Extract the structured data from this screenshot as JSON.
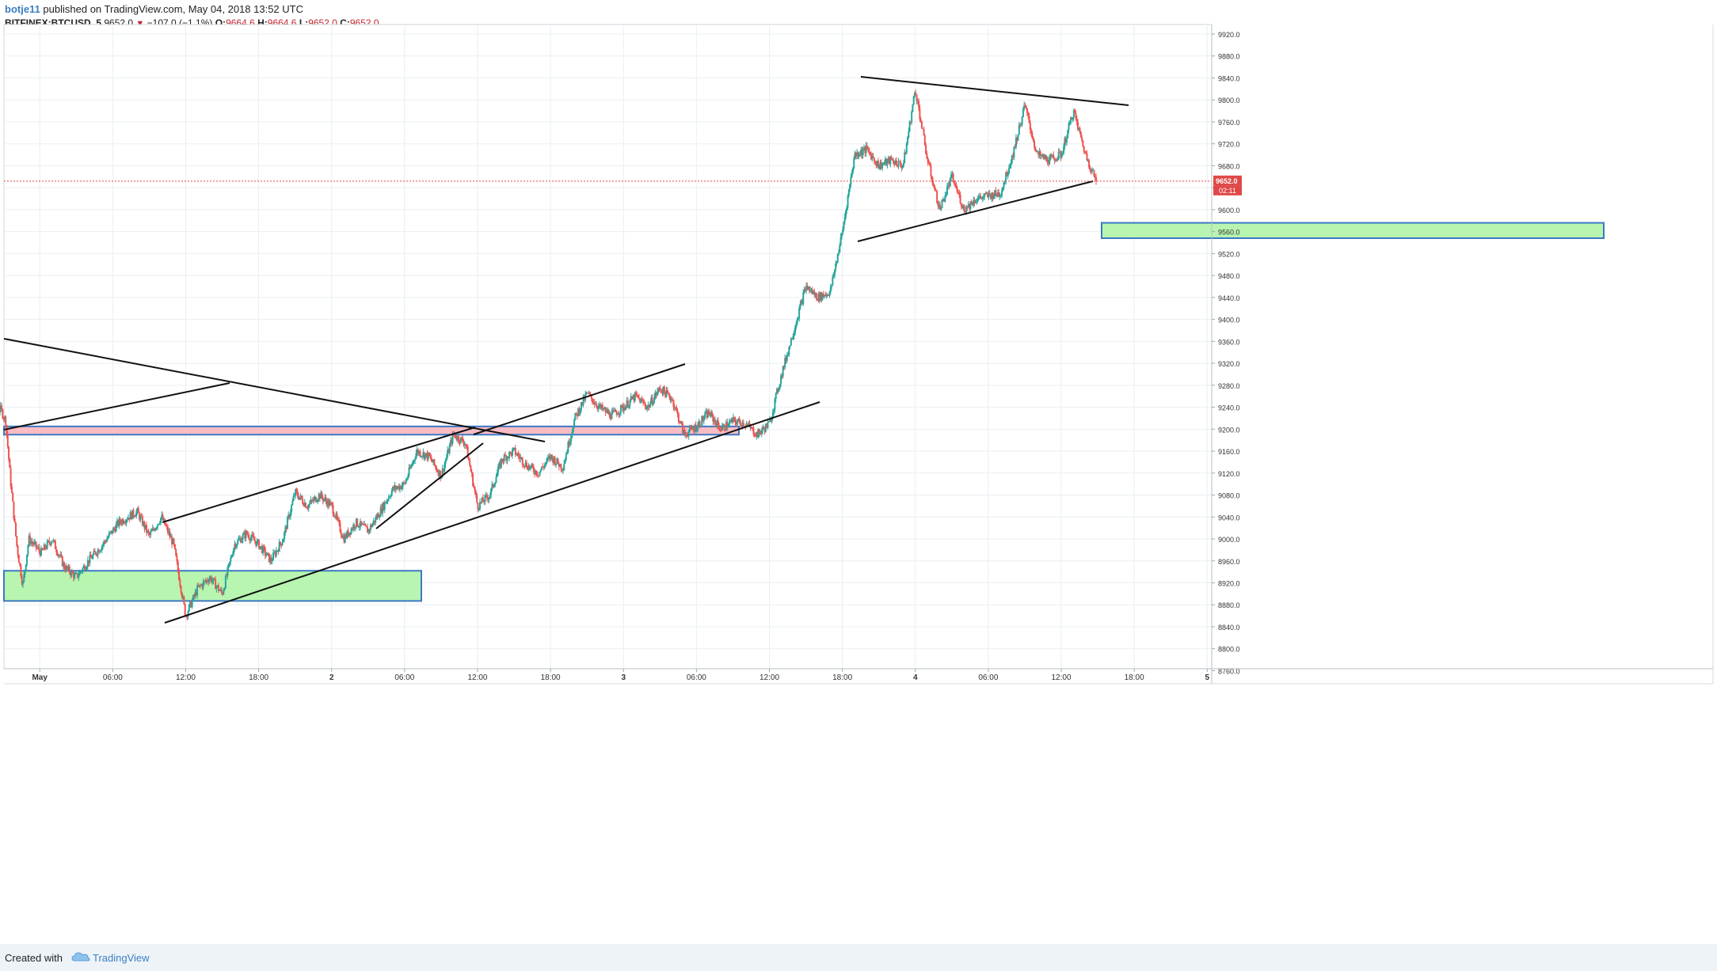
{
  "header": {
    "author": "botje11",
    "published_text": "published on TradingView.com, May 04, 2018 13:52 UTC",
    "symbol": "BITFINEX:BTCUSD, 5",
    "last_price": "9652.0",
    "change": "−107.0 (−1.1%)",
    "o_label": "O:",
    "o_value": "9664.6",
    "h_label": "H:",
    "h_value": "9664.6",
    "l_label": "L:",
    "l_value": "9652.0",
    "c_label": "C:",
    "c_value": "9652.0"
  },
  "footer": {
    "created_with": "Created with",
    "brand": "TradingView"
  },
  "colors": {
    "up": "#26a69a",
    "down": "#ef5350",
    "grid": "#e9eff3",
    "support_zone_fill": "#b8f5b0",
    "resistance_zone_fill": "#f9bcc4",
    "zone_border": "#3d78c4",
    "price_line": "#e04848"
  },
  "chart_data": {
    "type": "candlestick",
    "x_tick_labels": [
      "May",
      "06:00",
      "12:00",
      "18:00",
      "2",
      "06:00",
      "12:00",
      "18:00",
      "3",
      "06:00",
      "12:00",
      "18:00",
      "4",
      "06:00",
      "12:00",
      "18:00",
      "5"
    ],
    "y_axis": {
      "ylim": [
        8760,
        9920
      ],
      "tick_step": 40,
      "tick_labels": [
        "9920.0",
        "9880.0",
        "9840.0",
        "9800.0",
        "9760.0",
        "9720.0",
        "9680.0",
        "9640.0",
        "9600.0",
        "9560.0",
        "9520.0",
        "9480.0",
        "9440.0",
        "9400.0",
        "9360.0",
        "9320.0",
        "9280.0",
        "9240.0",
        "9200.0",
        "9160.0",
        "9120.0",
        "9080.0",
        "9040.0",
        "9000.0",
        "8960.0",
        "8920.0",
        "8880.0",
        "8840.0",
        "8800.0",
        "8760.0"
      ]
    },
    "last_price_label": "9652.0",
    "countdown_label": "02:11",
    "price_path_hours": [
      [
        -5.3,
        9250
      ],
      [
        -4.9,
        9240
      ],
      [
        -4.4,
        9270
      ],
      [
        -4.1,
        9230
      ],
      [
        -3.8,
        9175
      ],
      [
        -3.3,
        9240
      ],
      [
        -2.8,
        9215
      ],
      [
        -2.4,
        9105
      ],
      [
        -1.9,
        8990
      ],
      [
        -1.4,
        8915
      ],
      [
        -0.9,
        9000
      ],
      [
        0.1,
        8975
      ],
      [
        1.0,
        9000
      ],
      [
        2.0,
        8950
      ],
      [
        3.0,
        8930
      ],
      [
        4.0,
        8960
      ],
      [
        5.0,
        8985
      ],
      [
        6.5,
        9030
      ],
      [
        8.0,
        9050
      ],
      [
        9.0,
        9005
      ],
      [
        10.0,
        9040
      ],
      [
        11.0,
        8990
      ],
      [
        12.0,
        8860
      ],
      [
        13.0,
        8910
      ],
      [
        14.0,
        8930
      ],
      [
        15.0,
        8900
      ],
      [
        16.0,
        8990
      ],
      [
        17.0,
        9010
      ],
      [
        18.0,
        8990
      ],
      [
        19.0,
        8960
      ],
      [
        20.0,
        9000
      ],
      [
        21.0,
        9085
      ],
      [
        22.0,
        9060
      ],
      [
        23.0,
        9080
      ],
      [
        24.0,
        9060
      ],
      [
        25.0,
        9000
      ],
      [
        26.0,
        9030
      ],
      [
        27.0,
        9015
      ],
      [
        28.0,
        9050
      ],
      [
        29.0,
        9090
      ],
      [
        30.0,
        9100
      ],
      [
        31.0,
        9160
      ],
      [
        32.0,
        9150
      ],
      [
        33.0,
        9115
      ],
      [
        34.0,
        9190
      ],
      [
        35.0,
        9175
      ],
      [
        36.0,
        9060
      ],
      [
        37.0,
        9080
      ],
      [
        38.0,
        9145
      ],
      [
        39.0,
        9160
      ],
      [
        40.0,
        9135
      ],
      [
        41.0,
        9120
      ],
      [
        42.0,
        9150
      ],
      [
        43.0,
        9130
      ],
      [
        44.0,
        9220
      ],
      [
        45.0,
        9265
      ],
      [
        46.0,
        9240
      ],
      [
        47.0,
        9225
      ],
      [
        48.0,
        9240
      ],
      [
        49.0,
        9260
      ],
      [
        50.0,
        9240
      ],
      [
        51.0,
        9275
      ],
      [
        52.0,
        9255
      ],
      [
        53.0,
        9190
      ],
      [
        54.0,
        9205
      ],
      [
        55.0,
        9230
      ],
      [
        56.0,
        9200
      ],
      [
        57.0,
        9215
      ],
      [
        58.0,
        9210
      ],
      [
        59.0,
        9190
      ],
      [
        60.0,
        9210
      ],
      [
        61.0,
        9300
      ],
      [
        62.0,
        9380
      ],
      [
        63.0,
        9460
      ],
      [
        64.0,
        9440
      ],
      [
        65.0,
        9450
      ],
      [
        66.0,
        9560
      ],
      [
        67.0,
        9700
      ],
      [
        68.0,
        9710
      ],
      [
        69.0,
        9680
      ],
      [
        70.0,
        9690
      ],
      [
        71.0,
        9680
      ],
      [
        72.0,
        9820
      ],
      [
        73.0,
        9690
      ],
      [
        74.0,
        9600
      ],
      [
        75.0,
        9660
      ],
      [
        76.0,
        9600
      ],
      [
        77.0,
        9620
      ],
      [
        78.0,
        9625
      ],
      [
        79.0,
        9630
      ],
      [
        80.0,
        9700
      ],
      [
        81.0,
        9790
      ],
      [
        82.0,
        9700
      ],
      [
        83.0,
        9690
      ],
      [
        84.0,
        9700
      ],
      [
        85.0,
        9780
      ],
      [
        86.0,
        9700
      ],
      [
        86.9,
        9652
      ]
    ],
    "drawings": {
      "support_zone_1": [
        8887,
        8942
      ],
      "support_zone_2": [
        9548,
        9576
      ],
      "resistance_zone": [
        9190,
        9205
      ]
    }
  }
}
